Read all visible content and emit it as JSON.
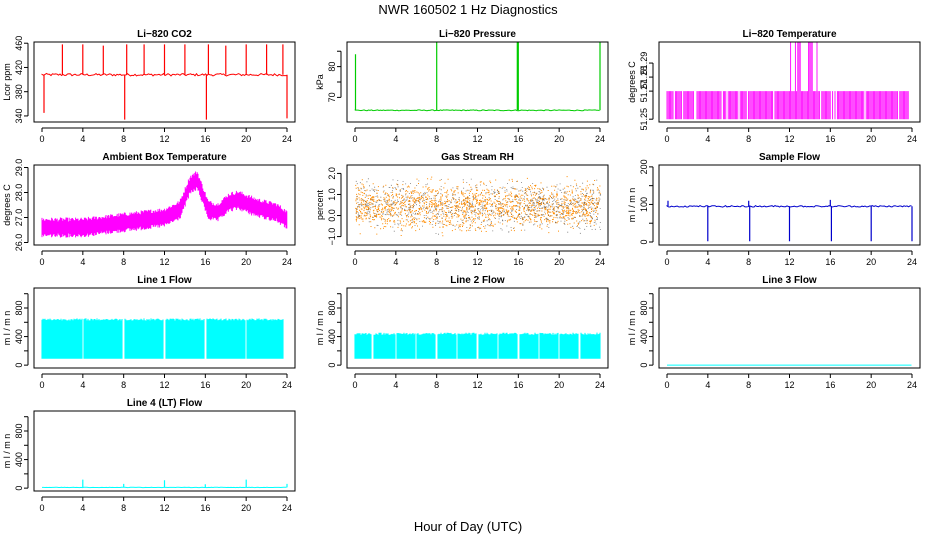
{
  "figure": {
    "title": "NWR  160502  1 Hz Diagnostics",
    "xlabel": "Hour of Day (UTC)"
  },
  "chart_data": [
    {
      "id": "co2",
      "type": "line",
      "title": "Li−820 CO2",
      "ylabel": "Lcor ppm",
      "color": "#ff0000",
      "xlim": [
        0,
        24
      ],
      "ylim": [
        330,
        462
      ],
      "yticks": [
        340,
        380,
        420,
        460
      ],
      "ytick_labels": [
        "340",
        "380",
        "420",
        "460"
      ],
      "xticks": [
        0,
        4,
        8,
        12,
        16,
        20,
        24
      ],
      "series": [
        {
          "name": "CO2",
          "baseline": 408,
          "noise": 2,
          "spikes_up": [
            [
              2.0,
              458
            ],
            [
              4.0,
              458
            ],
            [
              6.0,
              456
            ],
            [
              8.3,
              458
            ],
            [
              10.0,
              458
            ],
            [
              12.0,
              458
            ],
            [
              14.0,
              458
            ],
            [
              16.3,
              458
            ],
            [
              18.0,
              456
            ],
            [
              20.0,
              458
            ],
            [
              22.0,
              458
            ],
            [
              23.6,
              458
            ]
          ],
          "spikes_down": [
            [
              0.2,
              345
            ],
            [
              8.1,
              334
            ],
            [
              16.1,
              334
            ],
            [
              24.0,
              336
            ]
          ]
        }
      ]
    },
    {
      "id": "pressure",
      "type": "line",
      "title": "Li−820 Pressure",
      "ylabel": "kPa",
      "color": "#00cc00",
      "xlim": [
        0,
        24
      ],
      "ylim": [
        62,
        88
      ],
      "yticks": [
        70,
        75,
        80,
        85
      ],
      "ytick_labels": [
        "70",
        "",
        "80",
        ""
      ],
      "xticks": [
        0,
        4,
        8,
        12,
        16,
        20,
        24
      ],
      "series": [
        {
          "name": "Pressure",
          "baseline": 65.8,
          "noise": 0.15,
          "spikes_up": [
            [
              0.05,
              84
            ],
            [
              8.0,
              88
            ],
            [
              15.9,
              88
            ],
            [
              16.0,
              88
            ],
            [
              24.0,
              88
            ]
          ],
          "spikes_down": []
        }
      ]
    },
    {
      "id": "li_temp",
      "type": "line",
      "title": "Li−820 Temperature",
      "ylabel": "degrees C",
      "color": "#ff00ff",
      "xlim": [
        0,
        24
      ],
      "ylim": [
        51.248,
        51.305
      ],
      "yticks": [
        51.25,
        51.27,
        51.28,
        51.29
      ],
      "ytick_labels": [
        "51.25",
        "51.27",
        "51.28",
        "51.29"
      ],
      "xticks": [
        0,
        4,
        8,
        12,
        16,
        20,
        24
      ],
      "series": [
        {
          "name": "Temperature",
          "low": 51.25,
          "high": 51.27,
          "high_max": 51.305,
          "high_span": [
            11,
            14.8
          ]
        }
      ]
    },
    {
      "id": "box_temp",
      "type": "line",
      "title": "Ambient Box Temperature",
      "ylabel": "degrees C",
      "color": "#ff00ff",
      "xlim": [
        0,
        24
      ],
      "ylim": [
        25.9,
        29.1
      ],
      "yticks": [
        26.0,
        27.0,
        28.0,
        29.0
      ],
      "ytick_labels": [
        "26.0",
        "27.0",
        "28.0",
        "29.0"
      ],
      "xticks": [
        0,
        4,
        8,
        12,
        16,
        20,
        24
      ],
      "series": [
        {
          "name": "Box temp",
          "curve": [
            [
              0,
              26.6
            ],
            [
              2,
              26.6
            ],
            [
              4,
              26.6
            ],
            [
              6,
              26.7
            ],
            [
              8,
              26.8
            ],
            [
              10,
              26.9
            ],
            [
              12,
              27.0
            ],
            [
              13.5,
              27.3
            ],
            [
              14.5,
              28.3
            ],
            [
              15.2,
              28.5
            ],
            [
              16.3,
              27.3
            ],
            [
              17.2,
              27.2
            ],
            [
              18.3,
              27.6
            ],
            [
              19.2,
              27.7
            ],
            [
              21,
              27.4
            ],
            [
              23,
              27.2
            ],
            [
              24,
              26.9
            ]
          ],
          "band": 0.8
        }
      ]
    },
    {
      "id": "rh",
      "type": "scatter",
      "title": "Gas Stream RH",
      "ylabel": "percent",
      "color": "#ff8c00",
      "color2": "#444444",
      "xlim": [
        0,
        24
      ],
      "ylim": [
        -1.4,
        2.4
      ],
      "yticks": [
        -1.0,
        0.0,
        1.0,
        2.0
      ],
      "ytick_labels": [
        "−1.0",
        "0.0",
        "1.0",
        "2.0"
      ],
      "xticks": [
        0,
        4,
        8,
        12,
        16,
        20,
        24
      ],
      "series": [
        {
          "name": "RH",
          "center": 0.45,
          "spread": 1.4
        }
      ]
    },
    {
      "id": "sample_flow",
      "type": "line",
      "title": "Sample Flow",
      "ylabel": "m l / m n",
      "color": "#0000cc",
      "xlim": [
        0,
        24
      ],
      "ylim": [
        -8,
        205
      ],
      "yticks": [
        0,
        50,
        100,
        150,
        200
      ],
      "ytick_labels": [
        "0",
        "",
        "100",
        "",
        "200"
      ],
      "xticks": [
        0,
        4,
        8,
        12,
        16,
        20,
        24
      ],
      "series": [
        {
          "name": "Sample flow",
          "baseline": 95,
          "noise": 2,
          "spikes_up": [
            [
              0.1,
              110
            ],
            [
              8.0,
              110
            ],
            [
              16.0,
              112
            ]
          ],
          "spikes_down": [
            [
              4.0,
              2
            ],
            [
              8.1,
              2
            ],
            [
              12.0,
              2
            ],
            [
              16.1,
              2
            ],
            [
              20.0,
              2
            ],
            [
              24.0,
              2
            ]
          ]
        }
      ]
    },
    {
      "id": "line1",
      "type": "area",
      "title": "Line 1 Flow",
      "ylabel": "m l / m n",
      "color": "#00ffff",
      "xlim": [
        0,
        24
      ],
      "ylim": [
        -40,
        1080
      ],
      "yticks": [
        0,
        200,
        400,
        600,
        800,
        1000
      ],
      "ytick_labels": [
        "0",
        "",
        "400",
        "",
        "800",
        ""
      ],
      "xticks": [
        0,
        4,
        8,
        12,
        16,
        20,
        24
      ],
      "series": [
        {
          "name": "Line 1",
          "low": 90,
          "high": 640,
          "gaps": [
            4.0,
            8.0,
            12.0,
            16.0,
            20.0
          ],
          "end": 23.7
        }
      ]
    },
    {
      "id": "line2",
      "type": "area",
      "title": "Line 2 Flow",
      "ylabel": "m l / m n",
      "color": "#00ffff",
      "xlim": [
        0,
        24
      ],
      "ylim": [
        -40,
        1080
      ],
      "yticks": [
        0,
        200,
        400,
        600,
        800,
        1000
      ],
      "ytick_labels": [
        "0",
        "",
        "400",
        "",
        "800",
        ""
      ],
      "xticks": [
        0,
        4,
        8,
        12,
        16,
        20,
        24
      ],
      "series": [
        {
          "name": "Line 2",
          "low": 90,
          "high": 440,
          "gaps": [
            1.7,
            4.0,
            6.0,
            8.0,
            10.0,
            12.0,
            14.0,
            16.0,
            18.0,
            20.0,
            22.0
          ],
          "end": 24.0
        }
      ]
    },
    {
      "id": "line3",
      "type": "line",
      "title": "Line 3 Flow",
      "ylabel": "m l / m n",
      "color": "#00ffff",
      "xlim": [
        0,
        24
      ],
      "ylim": [
        -40,
        1080
      ],
      "yticks": [
        0,
        200,
        400,
        600,
        800,
        1000
      ],
      "ytick_labels": [
        "0",
        "",
        "400",
        "",
        "800",
        ""
      ],
      "xticks": [
        0,
        4,
        8,
        12,
        16,
        20,
        24
      ],
      "series": [
        {
          "name": "Line 3",
          "baseline": 0,
          "noise": 0,
          "spikes_up": [],
          "spikes_down": []
        }
      ]
    },
    {
      "id": "line4",
      "type": "line",
      "title": "Line 4 (LT) Flow",
      "ylabel": "m l / m n",
      "color": "#00ffff",
      "xlim": [
        0,
        24
      ],
      "ylim": [
        -40,
        1080
      ],
      "yticks": [
        0,
        200,
        400,
        600,
        800,
        1000
      ],
      "ytick_labels": [
        "0",
        "",
        "400",
        "",
        "800",
        ""
      ],
      "xticks": [
        0,
        4,
        8,
        12,
        16,
        20,
        24
      ],
      "series": [
        {
          "name": "Line 4",
          "baseline": 10,
          "noise": 2,
          "spikes_up": [
            [
              4.0,
              120
            ],
            [
              8.0,
              60
            ],
            [
              12.0,
              110
            ],
            [
              16.0,
              55
            ],
            [
              20.0,
              120
            ],
            [
              24.0,
              60
            ]
          ],
          "spikes_down": []
        }
      ]
    }
  ]
}
